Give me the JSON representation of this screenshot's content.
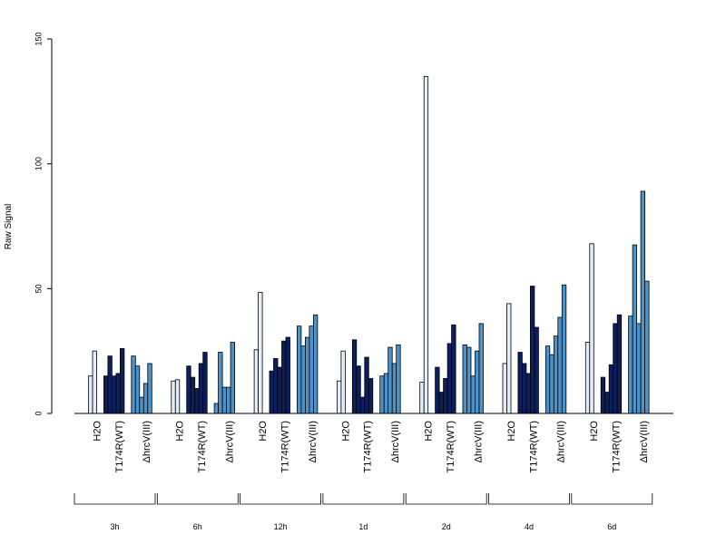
{
  "chart_data": {
    "type": "bar",
    "ylabel": "Raw Signal",
    "xlabel": "",
    "ylim": [
      0,
      150
    ],
    "yticks": [
      0,
      50,
      100,
      150
    ],
    "colors": {
      "H2O": "#e3edf8",
      "T174R(WT)": "#0a1f5c",
      "ΔhrcV(III)": "#4b93c8"
    },
    "groups": [
      {
        "time": "3h",
        "conditions": [
          {
            "label": "H2O",
            "key": "H2O",
            "values": [
              0,
              0,
              15,
              25
            ]
          },
          {
            "label": "T174R(WT)",
            "key": "T174R(WT)",
            "values": [
              15,
              23,
              15,
              16,
              26,
              0
            ]
          },
          {
            "label": "ΔhrcV(III)",
            "key": "ΔhrcV(III)",
            "values": [
              23,
              19,
              6.5,
              12,
              20,
              0
            ]
          }
        ]
      },
      {
        "time": "6h",
        "conditions": [
          {
            "label": "H2O",
            "key": "H2O",
            "values": [
              0,
              0,
              13,
              13.5
            ]
          },
          {
            "label": "T174R(WT)",
            "key": "T174R(WT)",
            "values": [
              19,
              14.5,
              10,
              20,
              24.5,
              0
            ]
          },
          {
            "label": "ΔhrcV(III)",
            "key": "ΔhrcV(III)",
            "values": [
              4,
              24.5,
              10.5,
              10.5,
              28.5,
              0
            ]
          }
        ]
      },
      {
        "time": "12h",
        "conditions": [
          {
            "label": "H2O",
            "key": "H2O",
            "values": [
              0,
              0,
              25.5,
              48.5
            ]
          },
          {
            "label": "T174R(WT)",
            "key": "T174R(WT)",
            "values": [
              17,
              22,
              18.5,
              29,
              30.5,
              0
            ]
          },
          {
            "label": "ΔhrcV(III)",
            "key": "ΔhrcV(III)",
            "values": [
              35,
              27,
              30.5,
              35,
              39.5,
              0
            ]
          }
        ]
      },
      {
        "time": "1d",
        "conditions": [
          {
            "label": "H2O",
            "key": "H2O",
            "values": [
              0,
              0,
              13,
              25
            ]
          },
          {
            "label": "T174R(WT)",
            "key": "T174R(WT)",
            "values": [
              29.5,
              19,
              6.5,
              22.5,
              14,
              0
            ]
          },
          {
            "label": "ΔhrcV(III)",
            "key": "ΔhrcV(III)",
            "values": [
              15,
              16,
              26.5,
              20,
              27.5,
              0
            ]
          }
        ]
      },
      {
        "time": "2d",
        "conditions": [
          {
            "label": "H2O",
            "key": "H2O",
            "values": [
              0,
              0,
              12.5,
              135
            ]
          },
          {
            "label": "T174R(WT)",
            "key": "T174R(WT)",
            "values": [
              18.5,
              8.5,
              14,
              28,
              35.5,
              0
            ]
          },
          {
            "label": "ΔhrcV(III)",
            "key": "ΔhrcV(III)",
            "values": [
              27.5,
              26.5,
              15,
              25,
              36,
              0
            ]
          }
        ]
      },
      {
        "time": "4d",
        "conditions": [
          {
            "label": "H2O",
            "key": "H2O",
            "values": [
              0,
              0,
              20,
              44
            ]
          },
          {
            "label": "T174R(WT)",
            "key": "T174R(WT)",
            "values": [
              24.5,
              20,
              16,
              51,
              34.5,
              0
            ]
          },
          {
            "label": "ΔhrcV(III)",
            "key": "ΔhrcV(III)",
            "values": [
              27,
              23.5,
              31,
              38.5,
              51.5,
              0
            ]
          }
        ]
      },
      {
        "time": "6d",
        "conditions": [
          {
            "label": "H2O",
            "key": "H2O",
            "values": [
              0,
              0,
              28.5,
              68
            ]
          },
          {
            "label": "T174R(WT)",
            "key": "T174R(WT)",
            "values": [
              14.5,
              8.5,
              19.5,
              36,
              39.5,
              0
            ]
          },
          {
            "label": "ΔhrcV(III)",
            "key": "ΔhrcV(III)",
            "values": [
              39,
              67.5,
              36,
              89,
              53,
              0
            ]
          }
        ]
      }
    ]
  }
}
